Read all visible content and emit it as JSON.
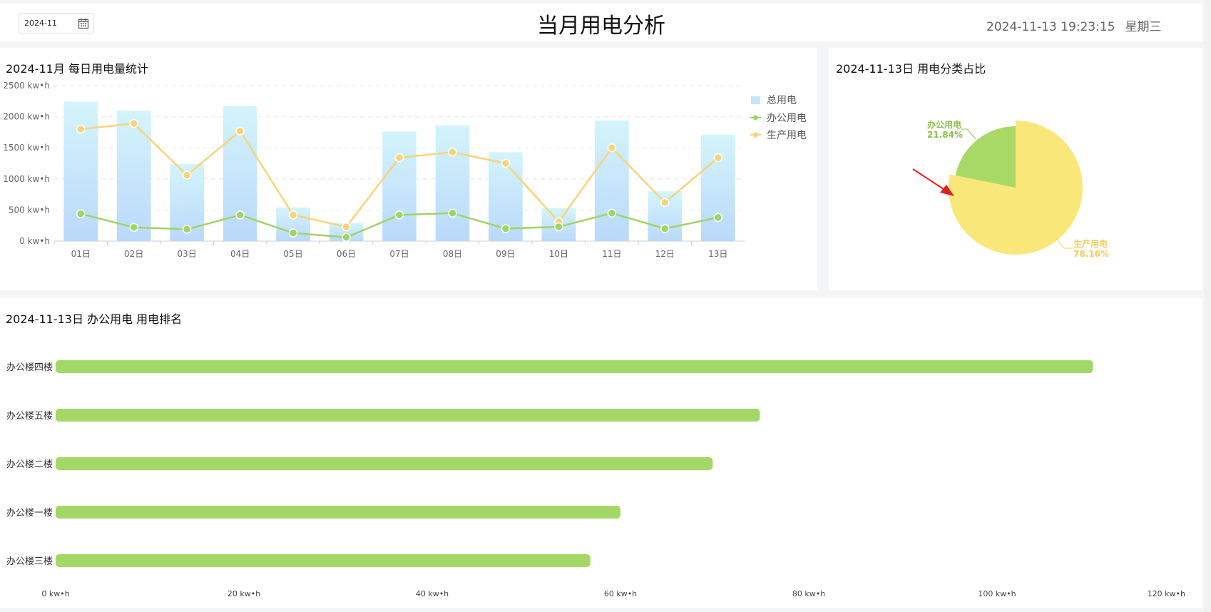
{
  "header": {
    "date_value": "2024-11",
    "title": "当月用电分析",
    "datetime": "2024-11-13 19:23:15",
    "weekday": "星期三"
  },
  "daily_panel": {
    "title": "2024-11月 每日用电量统计"
  },
  "pie_panel": {
    "title": "2024-11-13日 用电分类占比"
  },
  "rank_panel": {
    "title": "2024-11-13日 办公用电 用电排名"
  },
  "chart_data": [
    {
      "type": "bar",
      "categories": [
        "01日",
        "02日",
        "03日",
        "04日",
        "05日",
        "06日",
        "07日",
        "08日",
        "09日",
        "10日",
        "11日",
        "12日",
        "13日"
      ],
      "ylim": [
        0,
        2500
      ],
      "y_ticks": [
        "0  kw•h",
        "500  kw•h",
        "1000  kw•h",
        "1500  kw•h",
        "2000  kw•h",
        "2500  kw•h"
      ],
      "y_tick_values": [
        0,
        500,
        1000,
        1500,
        2000,
        2500
      ],
      "grid": true,
      "legend_position": "top-right",
      "series": [
        {
          "name": "总用电",
          "type": "bar",
          "color": "#bfe6fb",
          "values": [
            2240,
            2100,
            1240,
            2170,
            540,
            290,
            1760,
            1860,
            1430,
            530,
            1940,
            800,
            1710
          ]
        },
        {
          "name": "办公用电",
          "type": "line",
          "color": "#9fd466",
          "values": [
            440,
            220,
            190,
            420,
            130,
            60,
            420,
            450,
            200,
            230,
            450,
            200,
            380
          ]
        },
        {
          "name": "生产用电",
          "type": "line",
          "color": "#f7d47a",
          "values": [
            1800,
            1890,
            1060,
            1770,
            420,
            230,
            1340,
            1430,
            1250,
            310,
            1500,
            620,
            1340
          ]
        }
      ]
    },
    {
      "type": "pie",
      "slices": [
        {
          "name": "办公用电",
          "percent_label": "21.84%",
          "value": 21.84,
          "color": "#a8d967",
          "label_color": "#8cc04a"
        },
        {
          "name": "生产用电",
          "percent_label": "78.16%",
          "value": 78.16,
          "color": "#fae77a",
          "label_color": "#f2cd5a"
        }
      ]
    },
    {
      "type": "bar",
      "orientation": "horizontal",
      "categories": [
        "办公楼四楼",
        "办公楼五楼",
        "办公楼二楼",
        "办公楼一楼",
        "办公楼三楼"
      ],
      "values": [
        110.2,
        74.8,
        69.8,
        60.0,
        56.8
      ],
      "xlim": [
        0,
        120
      ],
      "x_ticks": [
        "0 kw•h",
        "20 kw•h",
        "40 kw•h",
        "60 kw•h",
        "80 kw•h",
        "100 kw•h",
        "120 kw•h"
      ],
      "x_tick_values": [
        0,
        20,
        40,
        60,
        80,
        100,
        120
      ],
      "color": "#a3d866"
    }
  ]
}
